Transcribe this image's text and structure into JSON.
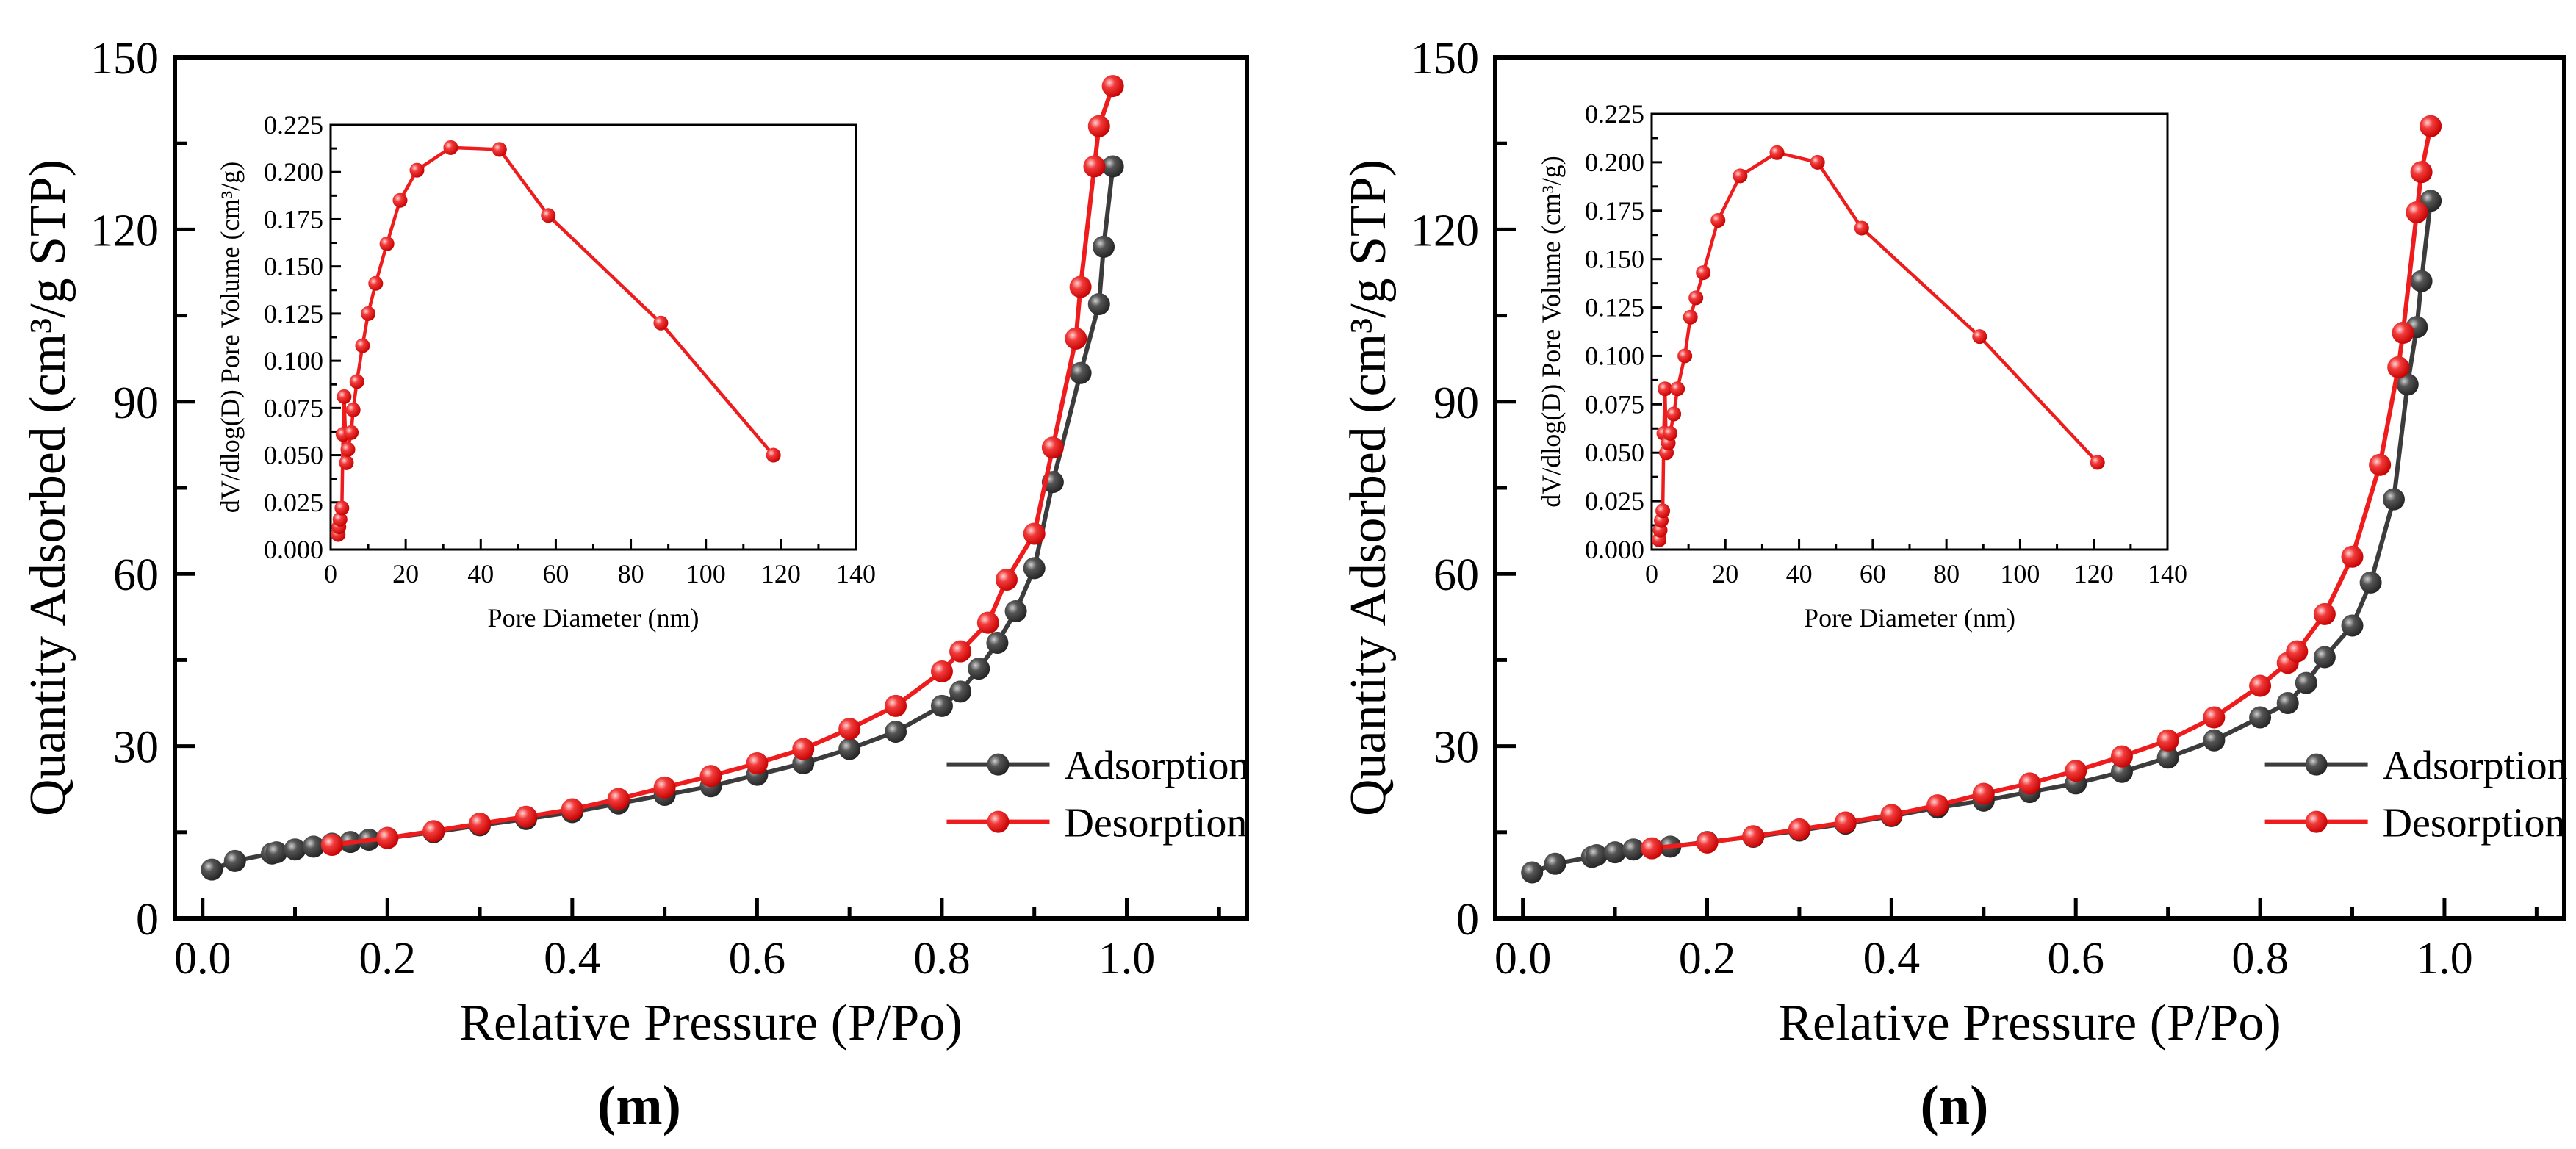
{
  "colors": {
    "adsorption": "#3c3c3c",
    "desorption": "#ee1c1c",
    "axis": "#000000"
  },
  "chart_data": [
    {
      "panel_label": "(m)",
      "type": "line",
      "xlabel": "Relative Pressure (P/Po)",
      "ylabel": "Quantity Adsorbed (cm³/g STP)",
      "xlim": [
        -0.03,
        1.13
      ],
      "ylim": [
        0,
        150
      ],
      "x_ticks": [
        "0.0",
        "0.2",
        "0.4",
        "0.6",
        "0.8",
        "1.0"
      ],
      "y_ticks": [
        "0",
        "30",
        "60",
        "90",
        "120",
        "150"
      ],
      "legend": {
        "placement": "bottom-right",
        "entries": [
          "Adsorption",
          "Desorption"
        ]
      },
      "series": [
        {
          "name": "Adsorption",
          "x": [
            0.01,
            0.035,
            0.075,
            0.08,
            0.1,
            0.12,
            0.14,
            0.16,
            0.18,
            0.2,
            0.25,
            0.3,
            0.35,
            0.4,
            0.45,
            0.5,
            0.55,
            0.6,
            0.65,
            0.7,
            0.75,
            0.8,
            0.82,
            0.84,
            0.86,
            0.88,
            0.9,
            0.92,
            0.95,
            0.97,
            0.975,
            0.985
          ],
          "y": [
            8.5,
            10,
            11.3,
            11.5,
            12,
            12.5,
            13,
            13.3,
            13.7,
            14,
            15,
            16.2,
            17.3,
            18.5,
            20,
            21.5,
            23,
            25,
            27,
            29.5,
            32.5,
            37,
            39.5,
            43.5,
            48,
            53.5,
            61,
            76,
            95,
            107,
            117,
            131
          ]
        },
        {
          "name": "Desorption",
          "x": [
            0.14,
            0.2,
            0.25,
            0.3,
            0.35,
            0.4,
            0.45,
            0.5,
            0.55,
            0.6,
            0.65,
            0.7,
            0.75,
            0.8,
            0.82,
            0.85,
            0.87,
            0.9,
            0.92,
            0.945,
            0.95,
            0.965,
            0.97,
            0.985
          ],
          "y": [
            12.8,
            14,
            15.2,
            16.5,
            17.7,
            19,
            20.8,
            22.8,
            24.8,
            27,
            29.5,
            33,
            37,
            43,
            46.5,
            51.5,
            59,
            67,
            82,
            101,
            110,
            131,
            138,
            145
          ]
        }
      ],
      "inset": {
        "type": "line",
        "xlabel": "Pore Diameter (nm)",
        "ylabel": "dV/dlog(D) Pore Volume (cm³/g)",
        "xlim": [
          0,
          140
        ],
        "ylim": [
          0,
          0.225
        ],
        "x_ticks": [
          "0",
          "20",
          "40",
          "60",
          "80",
          "100",
          "120",
          "140"
        ],
        "y_ticks": [
          "0.000",
          "0.025",
          "0.050",
          "0.075",
          "0.100",
          "0.125",
          "0.150",
          "0.175",
          "0.200",
          "0.225"
        ],
        "x": [
          2,
          2.2,
          2.5,
          3,
          3.3,
          3.6,
          4.2,
          4.6,
          5.5,
          6,
          7,
          8.5,
          10,
          12,
          15,
          18.5,
          23,
          32,
          45,
          58,
          88,
          118
        ],
        "y": [
          0.008,
          0.012,
          0.016,
          0.022,
          0.061,
          0.081,
          0.046,
          0.053,
          0.062,
          0.074,
          0.089,
          0.108,
          0.125,
          0.141,
          0.162,
          0.185,
          0.201,
          0.213,
          0.212,
          0.177,
          0.12,
          0.05
        ]
      }
    },
    {
      "panel_label": "(n)",
      "type": "line",
      "xlabel": "Relative Pressure (P/Po)",
      "ylabel": "Quantity Adsorbed (cm³/g STP)",
      "xlim": [
        -0.03,
        1.13
      ],
      "ylim": [
        0,
        150
      ],
      "x_ticks": [
        "0.0",
        "0.2",
        "0.4",
        "0.6",
        "0.8",
        "1.0"
      ],
      "y_ticks": [
        "0",
        "30",
        "60",
        "90",
        "120",
        "150"
      ],
      "legend": {
        "placement": "bottom-right",
        "entries": [
          "Adsorption",
          "Desorption"
        ]
      },
      "series": [
        {
          "name": "Adsorption",
          "x": [
            0.01,
            0.035,
            0.075,
            0.08,
            0.1,
            0.12,
            0.16,
            0.2,
            0.25,
            0.3,
            0.35,
            0.4,
            0.45,
            0.5,
            0.55,
            0.6,
            0.65,
            0.7,
            0.75,
            0.8,
            0.83,
            0.85,
            0.87,
            0.9,
            0.92,
            0.945,
            0.96,
            0.97,
            0.975,
            0.985
          ],
          "y": [
            8,
            9.5,
            10.7,
            11,
            11.5,
            12,
            12.5,
            13.3,
            14.2,
            15.3,
            16.5,
            17.8,
            19.3,
            20.5,
            22,
            23.5,
            25.5,
            28,
            31,
            35,
            37.5,
            41,
            45.5,
            51,
            58.5,
            73,
            93,
            103,
            111,
            125
          ]
        },
        {
          "name": "Desorption",
          "x": [
            0.14,
            0.2,
            0.25,
            0.3,
            0.35,
            0.4,
            0.45,
            0.5,
            0.55,
            0.6,
            0.65,
            0.7,
            0.75,
            0.8,
            0.83,
            0.84,
            0.87,
            0.9,
            0.93,
            0.95,
            0.955,
            0.97,
            0.975,
            0.985
          ],
          "y": [
            12.2,
            13.2,
            14.3,
            15.5,
            16.7,
            18,
            19.7,
            21.7,
            23.5,
            25.7,
            28.2,
            31,
            35,
            40.5,
            44.5,
            46.5,
            53,
            63,
            79,
            96,
            102,
            123,
            130,
            138
          ]
        }
      ],
      "inset": {
        "type": "line",
        "xlabel": "Pore Diameter (nm)",
        "ylabel": "dV/dlog(D) Pore Volume (cm³/g)",
        "xlim": [
          0,
          140
        ],
        "ylim": [
          0,
          0.225
        ],
        "x_ticks": [
          "0",
          "20",
          "40",
          "60",
          "80",
          "100",
          "120",
          "140"
        ],
        "y_ticks": [
          "0.000",
          "0.025",
          "0.050",
          "0.075",
          "0.100",
          "0.125",
          "0.150",
          "0.175",
          "0.200",
          "0.225"
        ],
        "x": [
          2,
          2.3,
          2.6,
          3,
          3.3,
          3.6,
          4,
          4.5,
          5,
          6,
          7,
          9,
          10.5,
          12,
          14,
          18,
          24,
          34,
          45,
          57,
          89,
          121
        ],
        "y": [
          0.005,
          0.01,
          0.015,
          0.02,
          0.06,
          0.083,
          0.05,
          0.055,
          0.06,
          0.07,
          0.083,
          0.1,
          0.12,
          0.13,
          0.143,
          0.17,
          0.193,
          0.205,
          0.2,
          0.166,
          0.11,
          0.045
        ]
      }
    }
  ]
}
